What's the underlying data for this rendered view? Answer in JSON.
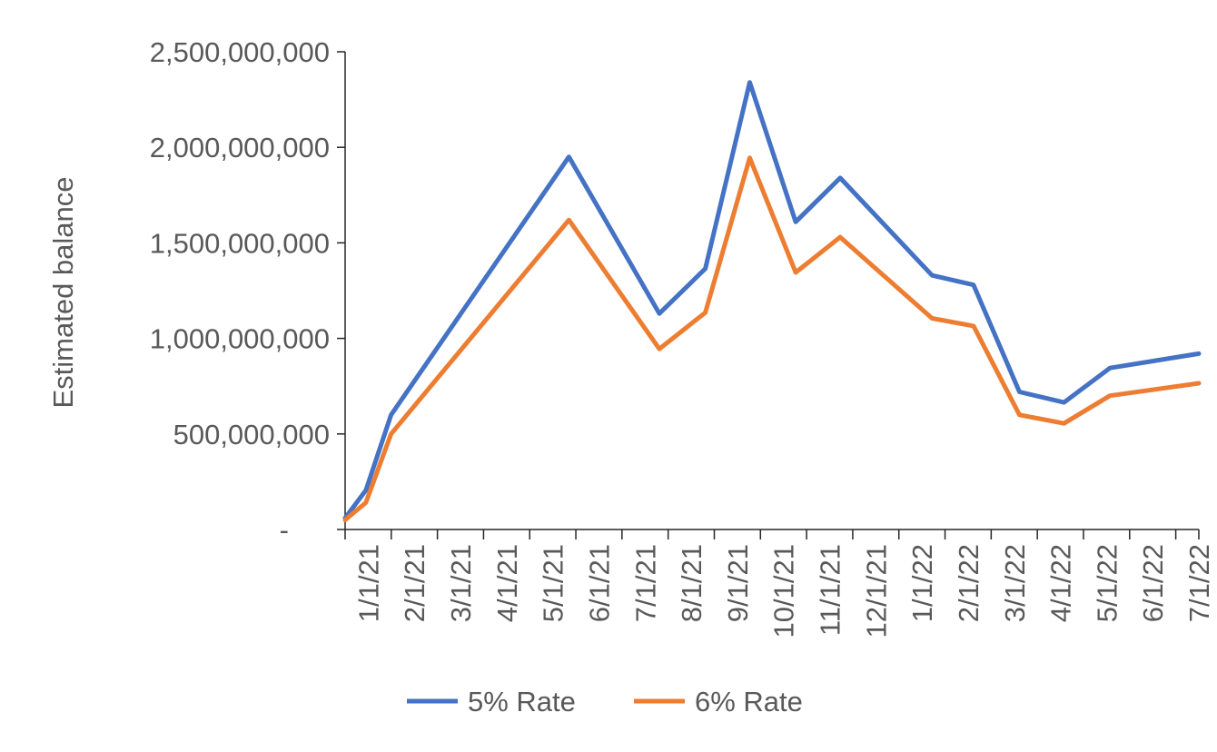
{
  "chart_data": {
    "type": "line",
    "categories": [
      "1/1/21",
      "2/1/21",
      "3/1/21",
      "4/1/21",
      "5/1/21",
      "6/1/21",
      "7/1/21",
      "8/1/21",
      "9/1/21",
      "10/1/21",
      "11/1/21",
      "12/1/21",
      "1/1/22",
      "2/1/22",
      "3/1/22",
      "4/1/22",
      "5/1/22",
      "6/1/22",
      "7/1/22"
    ],
    "x": [
      "2021-01-01",
      "2021-01-15",
      "2021-02-01",
      "2021-06-01",
      "2021-08-01",
      "2021-09-01",
      "2021-10-01",
      "2021-11-01",
      "2021-12-01",
      "2022-02-01",
      "2022-03-01",
      "2022-04-01",
      "2022-05-01",
      "2022-06-01",
      "2022-07-31"
    ],
    "series": [
      {
        "name": "5% Rate",
        "color": "#4472C4",
        "values": [
          60000000,
          205000000,
          600000000,
          1950000000,
          1130000000,
          1365000000,
          2340000000,
          1610000000,
          1840000000,
          1330000000,
          1280000000,
          720000000,
          665000000,
          845000000,
          920000000
        ]
      },
      {
        "name": "6% Rate",
        "color": "#ED7D31",
        "values": [
          50000000,
          140000000,
          500000000,
          1620000000,
          945000000,
          1135000000,
          1945000000,
          1345000000,
          1530000000,
          1105000000,
          1065000000,
          600000000,
          555000000,
          700000000,
          765000000
        ]
      }
    ],
    "xlabel": "",
    "ylabel": "Estimated balance",
    "ylim": [
      0,
      2500000000
    ],
    "y_ticks": [
      {
        "value": 0,
        "label": "-"
      },
      {
        "value": 500000000,
        "label": "500,000,000"
      },
      {
        "value": 1000000000,
        "label": "1,000,000,000"
      },
      {
        "value": 1500000000,
        "label": "1,500,000,000"
      },
      {
        "value": 2000000000,
        "label": "2,000,000,000"
      },
      {
        "value": 2500000000,
        "label": "2,500,000,000"
      }
    ],
    "grid": false,
    "legend_position": "bottom"
  }
}
